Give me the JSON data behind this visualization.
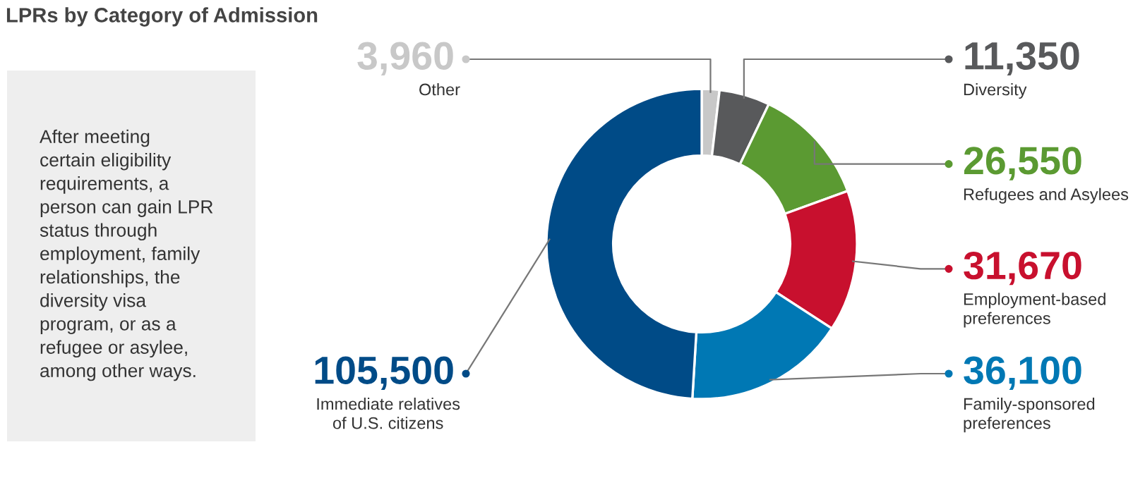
{
  "chart_data": {
    "type": "donut",
    "title": "LPRs by Category of Admission",
    "categories": [
      "Other",
      "Diversity",
      "Refugees and Asylees",
      "Employment-based\npreferences",
      "Family-sponsored\npreferences",
      "Immediate relatives\nof U.S. citizens"
    ],
    "values": [
      3960,
      11350,
      26550,
      31670,
      36100,
      105500
    ],
    "value_labels": [
      "3,960",
      "11,350",
      "26,550",
      "31,670",
      "36,100",
      "105,500"
    ],
    "colors": [
      "#c8c8c8",
      "#58595b",
      "#5b9a32",
      "#c8102e",
      "#0078b4",
      "#004b87"
    ],
    "annotations": [
      "After meeting\ncertain eligibility\nrequirements, a\nperson can gain LPR\nstatus through\nemployment, family\nrelationships, the\ndiversity visa\nprogram, or as a\nrefugee or asylee,\namong other ways."
    ],
    "legend": false
  }
}
